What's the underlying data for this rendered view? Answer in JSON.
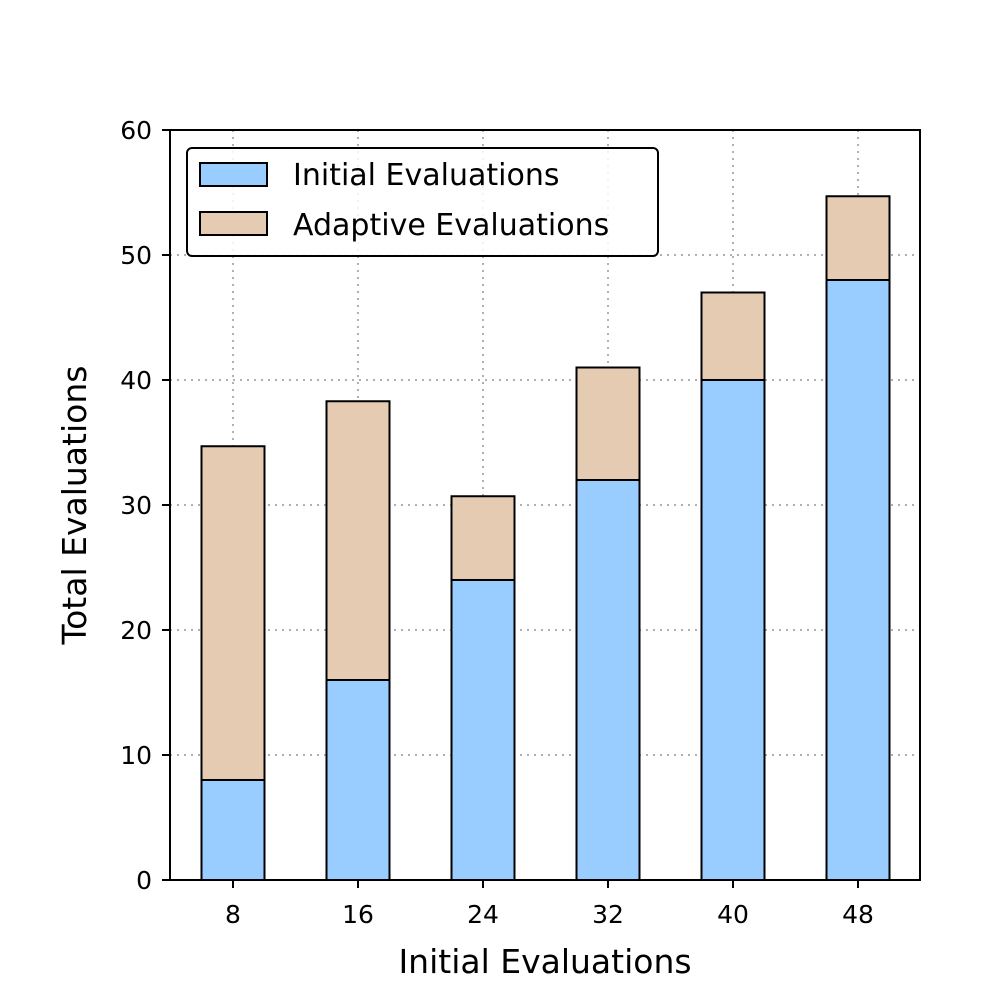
{
  "chart_data": {
    "type": "bar",
    "stacked": true,
    "categories": [
      "8",
      "16",
      "24",
      "32",
      "40",
      "48"
    ],
    "series": [
      {
        "name": "Initial Evaluations",
        "values": [
          8,
          16,
          24,
          32,
          40,
          48
        ],
        "color": "#99ccff"
      },
      {
        "name": "Adaptive Evaluations",
        "values": [
          26.7,
          22.3,
          6.7,
          9,
          7,
          6.7
        ],
        "color": "#e6cbb3"
      }
    ],
    "title": "",
    "xlabel": "Initial Evaluations",
    "ylabel": "Total Evaluations",
    "ylim": [
      0,
      60
    ],
    "yticks": [
      0,
      10,
      20,
      30,
      40,
      50,
      60
    ],
    "grid": true,
    "legend_position": "top-left"
  }
}
